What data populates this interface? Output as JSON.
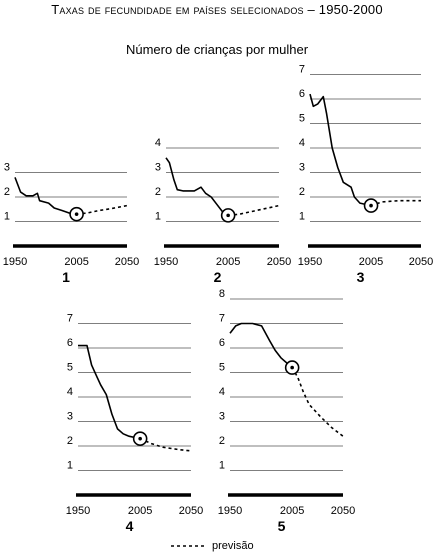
{
  "header": {
    "title_prefix": "Taxas de fecundidade em países selecionados",
    "title_suffix": "– 1950-2000",
    "subtitle": "Número de crianças por mulher"
  },
  "legend": {
    "forecast_label": "previsão"
  },
  "chart_data": [
    {
      "type": "line",
      "label": "1",
      "xlim": [
        1950,
        2050
      ],
      "ylim": [
        0,
        3
      ],
      "x_ticks": [
        1950,
        2005,
        2050
      ],
      "y_ticks": [
        1,
        2,
        3
      ],
      "marker": {
        "x": 2005,
        "y": 1.3
      },
      "series": [
        {
          "style": "solid",
          "points": [
            [
              1950,
              2.8
            ],
            [
              1955,
              2.2
            ],
            [
              1960,
              2.05
            ],
            [
              1966,
              2.05
            ],
            [
              1970,
              2.15
            ],
            [
              1972,
              1.85
            ],
            [
              1980,
              1.75
            ],
            [
              1985,
              1.55
            ],
            [
              1992,
              1.45
            ],
            [
              1998,
              1.35
            ],
            [
              2005,
              1.3
            ]
          ]
        },
        {
          "style": "dashed",
          "points": [
            [
              2005,
              1.3
            ],
            [
              2015,
              1.35
            ],
            [
              2025,
              1.45
            ],
            [
              2035,
              1.52
            ],
            [
              2050,
              1.65
            ]
          ]
        }
      ]
    },
    {
      "type": "line",
      "label": "2",
      "xlim": [
        1950,
        2050
      ],
      "ylim": [
        0,
        4
      ],
      "x_ticks": [
        1950,
        2005,
        2050
      ],
      "y_ticks": [
        1,
        2,
        3,
        4
      ],
      "marker": {
        "x": 2005,
        "y": 1.25
      },
      "series": [
        {
          "style": "solid",
          "points": [
            [
              1950,
              3.6
            ],
            [
              1953,
              3.4
            ],
            [
              1957,
              2.7
            ],
            [
              1960,
              2.3
            ],
            [
              1965,
              2.25
            ],
            [
              1975,
              2.25
            ],
            [
              1981,
              2.4
            ],
            [
              1985,
              2.15
            ],
            [
              1990,
              2.0
            ],
            [
              1995,
              1.7
            ],
            [
              2000,
              1.4
            ],
            [
              2005,
              1.25
            ]
          ]
        },
        {
          "style": "dashed",
          "points": [
            [
              2005,
              1.25
            ],
            [
              2015,
              1.3
            ],
            [
              2030,
              1.45
            ],
            [
              2050,
              1.65
            ]
          ]
        }
      ]
    },
    {
      "type": "line",
      "label": "3",
      "xlim": [
        1950,
        2050
      ],
      "ylim": [
        0,
        7
      ],
      "x_ticks": [
        1950,
        2005,
        2050
      ],
      "y_ticks": [
        1,
        2,
        3,
        4,
        5,
        6,
        7
      ],
      "marker": {
        "x": 2005,
        "y": 1.65
      },
      "series": [
        {
          "style": "solid",
          "points": [
            [
              1950,
              6.2
            ],
            [
              1953,
              5.7
            ],
            [
              1957,
              5.8
            ],
            [
              1962,
              6.1
            ],
            [
              1965,
              5.4
            ],
            [
              1970,
              4.0
            ],
            [
              1975,
              3.2
            ],
            [
              1980,
              2.6
            ],
            [
              1987,
              2.4
            ],
            [
              1990,
              2.0
            ],
            [
              1995,
              1.75
            ],
            [
              2005,
              1.65
            ]
          ]
        },
        {
          "style": "dashed",
          "points": [
            [
              2005,
              1.65
            ],
            [
              2015,
              1.8
            ],
            [
              2030,
              1.85
            ],
            [
              2050,
              1.85
            ]
          ]
        }
      ]
    },
    {
      "type": "line",
      "label": "4",
      "xlim": [
        1950,
        2050
      ],
      "ylim": [
        0,
        7
      ],
      "x_ticks": [
        1950,
        2005,
        2050
      ],
      "y_ticks": [
        1,
        2,
        3,
        4,
        5,
        6,
        7
      ],
      "marker": {
        "x": 2005,
        "y": 2.3
      },
      "series": [
        {
          "style": "solid",
          "points": [
            [
              1950,
              6.1
            ],
            [
              1958,
              6.1
            ],
            [
              1962,
              5.3
            ],
            [
              1967,
              4.8
            ],
            [
              1970,
              4.5
            ],
            [
              1975,
              4.1
            ],
            [
              1980,
              3.3
            ],
            [
              1985,
              2.7
            ],
            [
              1990,
              2.5
            ],
            [
              1995,
              2.4
            ],
            [
              2005,
              2.3
            ]
          ]
        },
        {
          "style": "dashed",
          "points": [
            [
              2005,
              2.3
            ],
            [
              2015,
              2.1
            ],
            [
              2025,
              1.95
            ],
            [
              2040,
              1.85
            ],
            [
              2050,
              1.8
            ]
          ]
        }
      ]
    },
    {
      "type": "line",
      "label": "5",
      "xlim": [
        1950,
        2050
      ],
      "ylim": [
        0,
        8
      ],
      "x_ticks": [
        1950,
        2005,
        2050
      ],
      "y_ticks": [
        1,
        2,
        3,
        4,
        5,
        6,
        7,
        8
      ],
      "marker": {
        "x": 2005,
        "y": 5.2
      },
      "series": [
        {
          "style": "solid",
          "points": [
            [
              1950,
              6.6
            ],
            [
              1955,
              6.9
            ],
            [
              1960,
              7.0
            ],
            [
              1970,
              7.0
            ],
            [
              1978,
              6.9
            ],
            [
              1985,
              6.3
            ],
            [
              1990,
              5.9
            ],
            [
              1995,
              5.6
            ],
            [
              2005,
              5.2
            ]
          ]
        },
        {
          "style": "dashed",
          "points": [
            [
              2005,
              5.2
            ],
            [
              2010,
              4.8
            ],
            [
              2015,
              4.2
            ],
            [
              2020,
              3.7
            ],
            [
              2030,
              3.2
            ],
            [
              2040,
              2.75
            ],
            [
              2050,
              2.4
            ]
          ]
        }
      ]
    }
  ]
}
